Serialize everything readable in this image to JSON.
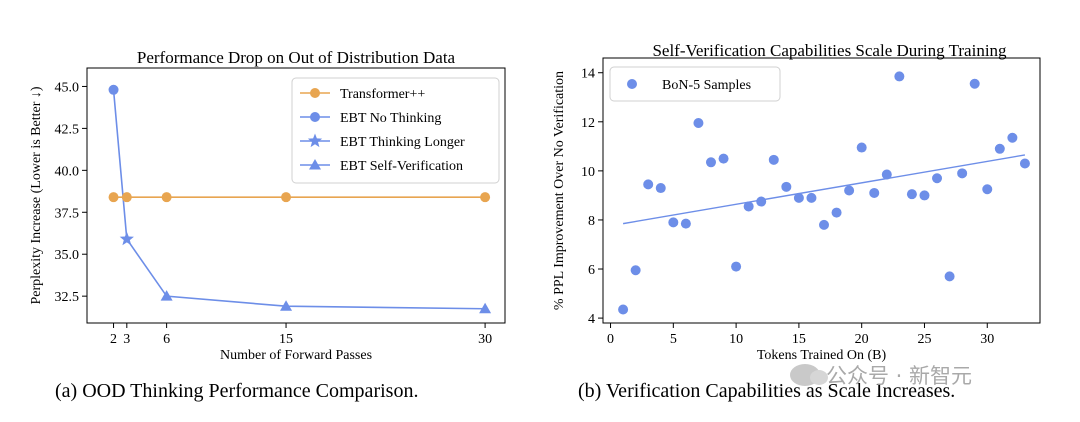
{
  "chart_data": [
    {
      "type": "line",
      "title": "Performance Drop on Out of Distribution Data",
      "xlabel": "Number of Forward Passes",
      "ylabel": "Perplexity Increase (Lower is Better ↓)",
      "xlim": [
        0,
        31.5
      ],
      "ylim": [
        30.9,
        46.1
      ],
      "xticks": [
        2,
        3,
        6,
        15,
        30
      ],
      "yticks": [
        32.5,
        35.0,
        37.5,
        40.0,
        42.5,
        45.0
      ],
      "ytick_labels": [
        "32.5",
        "35.0",
        "37.5",
        "40.0",
        "42.5",
        "45.0"
      ],
      "legend_position": "top-right",
      "series": [
        {
          "name": "Transformer++",
          "color": "#E8A550",
          "marker": "circle",
          "x": [
            2,
            3,
            6,
            15,
            30
          ],
          "y": [
            38.4,
            38.4,
            38.4,
            38.4,
            38.4
          ]
        },
        {
          "name": "EBT No Thinking",
          "color": "#6D8EE8",
          "marker": "circle",
          "x": [
            2
          ],
          "y": [
            44.8
          ]
        },
        {
          "name": "EBT Thinking Longer",
          "color": "#6D8EE8",
          "marker": "star",
          "x": [
            3
          ],
          "y": [
            35.9
          ]
        },
        {
          "name": "EBT Self-Verification",
          "color": "#6D8EE8",
          "marker": "triangle",
          "x": [
            6,
            15,
            30
          ],
          "y": [
            32.5,
            31.9,
            31.75
          ]
        }
      ],
      "connector": {
        "color": "#6D8EE8",
        "x": [
          2,
          3,
          6,
          15,
          30
        ],
        "y": [
          44.8,
          35.9,
          32.5,
          31.9,
          31.75
        ]
      }
    },
    {
      "type": "scatter",
      "title": "Self-Verification Capabilities Scale During Training",
      "xlabel": "Tokens Trained On (B)",
      "ylabel": "% PPL Improvement Over No Verification",
      "xlim": [
        -0.6,
        34.2
      ],
      "ylim": [
        3.8,
        14.6
      ],
      "xticks": [
        0,
        5,
        10,
        15,
        20,
        25,
        30
      ],
      "yticks": [
        4,
        6,
        8,
        10,
        12,
        14
      ],
      "legend_position": "top-left",
      "series": [
        {
          "name": "BoN-5 Samples",
          "color": "#6D8EE8",
          "points": [
            [
              1,
              4.35
            ],
            [
              2,
              5.95
            ],
            [
              3,
              9.45
            ],
            [
              4,
              9.3
            ],
            [
              5,
              7.9
            ],
            [
              6,
              7.85
            ],
            [
              7,
              11.95
            ],
            [
              8,
              10.35
            ],
            [
              9,
              10.5
            ],
            [
              10,
              6.1
            ],
            [
              11,
              8.55
            ],
            [
              12,
              8.75
            ],
            [
              13,
              10.45
            ],
            [
              14,
              9.35
            ],
            [
              15,
              8.9
            ],
            [
              16,
              8.9
            ],
            [
              17,
              7.8
            ],
            [
              18,
              8.3
            ],
            [
              19,
              9.2
            ],
            [
              20,
              10.95
            ],
            [
              21,
              9.1
            ],
            [
              22,
              9.85
            ],
            [
              23,
              13.85
            ],
            [
              24,
              9.05
            ],
            [
              25,
              9.0
            ],
            [
              26,
              9.7
            ],
            [
              27,
              5.7
            ],
            [
              28,
              9.9
            ],
            [
              29,
              13.55
            ],
            [
              30,
              9.25
            ],
            [
              31,
              10.9
            ],
            [
              32,
              11.35
            ],
            [
              33,
              10.3
            ]
          ]
        }
      ],
      "trendline": {
        "color": "#6D8EE8",
        "x": [
          1,
          33
        ],
        "y": [
          7.85,
          10.65
        ]
      }
    }
  ],
  "captions": {
    "left": "(a) OOD Thinking Performance Comparison.",
    "right": "(b) Verification Capabilities as Scale Increases."
  },
  "watermark": "公众号 · 新智元"
}
